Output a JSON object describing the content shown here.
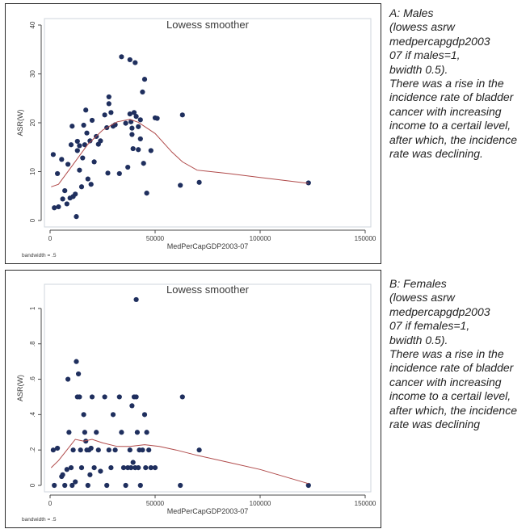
{
  "chart_data": [
    {
      "type": "scatter",
      "title": "Lowess smoother",
      "xlabel": "MedPerCapGDP2003-07",
      "ylabel": "ASR(W)",
      "note": "bandwidth = .5",
      "xlim": [
        0,
        150000
      ],
      "ylim": [
        0,
        40
      ],
      "x_ticks": [
        {
          "value": 0,
          "label": "0"
        },
        {
          "value": 50000,
          "label": "50000"
        },
        {
          "value": 100000,
          "label": "100000"
        },
        {
          "value": 150000,
          "label": "150000"
        }
      ],
      "y_ticks": [
        {
          "value": 0,
          "label": "0"
        },
        {
          "value": 10,
          "label": "10"
        },
        {
          "value": 20,
          "label": "20"
        },
        {
          "value": 30,
          "label": "30"
        },
        {
          "value": 40,
          "label": "40"
        }
      ],
      "grid": false,
      "points": [
        [
          1500,
          13.5
        ],
        [
          2000,
          2.6
        ],
        [
          3500,
          9.6
        ],
        [
          4000,
          2.8
        ],
        [
          5500,
          12.5
        ],
        [
          6000,
          4.4
        ],
        [
          7000,
          6.1
        ],
        [
          8000,
          3.4
        ],
        [
          8500,
          11.5
        ],
        [
          9500,
          4.6
        ],
        [
          10000,
          15.5
        ],
        [
          10500,
          19.3
        ],
        [
          11000,
          4.9
        ],
        [
          12000,
          5.4
        ],
        [
          12500,
          0.8
        ],
        [
          13000,
          14.3
        ],
        [
          13000,
          16.2
        ],
        [
          14000,
          15.3
        ],
        [
          14000,
          10.3
        ],
        [
          15000,
          6.9
        ],
        [
          15500,
          12.8
        ],
        [
          16000,
          19.5
        ],
        [
          16500,
          15.5
        ],
        [
          17000,
          22.6
        ],
        [
          17500,
          17.9
        ],
        [
          18000,
          8.5
        ],
        [
          19000,
          16.3
        ],
        [
          19500,
          7.4
        ],
        [
          20000,
          20.5
        ],
        [
          21000,
          12.0
        ],
        [
          22000,
          17.2
        ],
        [
          23000,
          15.6
        ],
        [
          24000,
          16.3
        ],
        [
          26000,
          21.6
        ],
        [
          27000,
          19.0
        ],
        [
          27500,
          9.7
        ],
        [
          28000,
          25.3
        ],
        [
          28000,
          23.9
        ],
        [
          29000,
          22.1
        ],
        [
          30000,
          19.3
        ],
        [
          31000,
          19.6
        ],
        [
          33000,
          9.6
        ],
        [
          34000,
          33.5
        ],
        [
          36000,
          19.9
        ],
        [
          37000,
          10.9
        ],
        [
          38000,
          32.9
        ],
        [
          38000,
          21.8
        ],
        [
          38500,
          20.2
        ],
        [
          39000,
          18.9
        ],
        [
          39000,
          17.6
        ],
        [
          39500,
          14.7
        ],
        [
          40000,
          22.1
        ],
        [
          40500,
          32.3
        ],
        [
          41000,
          21.3
        ],
        [
          42000,
          14.5
        ],
        [
          42000,
          19.2
        ],
        [
          43000,
          20.6
        ],
        [
          43000,
          16.7
        ],
        [
          44000,
          26.3
        ],
        [
          45000,
          28.9
        ],
        [
          44500,
          11.7
        ],
        [
          46000,
          5.6
        ],
        [
          48000,
          14.3
        ],
        [
          50000,
          21.0
        ],
        [
          51000,
          20.9
        ],
        [
          62000,
          7.2
        ],
        [
          63000,
          21.6
        ],
        [
          71000,
          7.8
        ],
        [
          123000,
          7.7
        ]
      ],
      "smoother": [
        [
          500,
          6.9
        ],
        [
          4000,
          7.4
        ],
        [
          10000,
          10.9
        ],
        [
          18000,
          15.6
        ],
        [
          25000,
          18.5
        ],
        [
          32000,
          20.2
        ],
        [
          38000,
          20.7
        ],
        [
          42000,
          20.1
        ],
        [
          50000,
          17.8
        ],
        [
          58000,
          14.0
        ],
        [
          63000,
          12.0
        ],
        [
          70000,
          10.3
        ],
        [
          85000,
          9.6
        ],
        [
          100000,
          8.8
        ],
        [
          123000,
          7.6
        ]
      ]
    },
    {
      "type": "scatter",
      "title": "Lowess smoother",
      "xlabel": "MedPerCapGDP2003-07",
      "ylabel": "ASR(W)",
      "note": "bandwidth = .5",
      "xlim": [
        0,
        150000
      ],
      "ylim": [
        0,
        1.1
      ],
      "x_ticks": [
        {
          "value": 0,
          "label": "0"
        },
        {
          "value": 50000,
          "label": "50000"
        },
        {
          "value": 100000,
          "label": "100000"
        },
        {
          "value": 150000,
          "label": "150000"
        }
      ],
      "y_ticks": [
        {
          "value": 0,
          "label": "0"
        },
        {
          "value": 0.2,
          "label": ".2"
        },
        {
          "value": 0.4,
          "label": ".4"
        },
        {
          "value": 0.6,
          "label": ".6"
        },
        {
          "value": 0.8,
          "label": ".8"
        },
        {
          "value": 1.0,
          "label": "1"
        }
      ],
      "grid": false,
      "points": [
        [
          1500,
          0.2
        ],
        [
          2000,
          0.0
        ],
        [
          3500,
          0.21
        ],
        [
          5500,
          0.05
        ],
        [
          6000,
          0.06
        ],
        [
          7000,
          0.0
        ],
        [
          8000,
          0.09
        ],
        [
          8500,
          0.6
        ],
        [
          9000,
          0.3
        ],
        [
          10000,
          0.1
        ],
        [
          10500,
          0.0
        ],
        [
          11000,
          0.2
        ],
        [
          12000,
          0.02
        ],
        [
          12500,
          0.7
        ],
        [
          13000,
          0.5
        ],
        [
          13500,
          0.63
        ],
        [
          14000,
          0.5
        ],
        [
          14500,
          0.2
        ],
        [
          15000,
          0.1
        ],
        [
          16000,
          0.4
        ],
        [
          16500,
          0.3
        ],
        [
          17000,
          0.25
        ],
        [
          17500,
          0.2
        ],
        [
          18000,
          0.0
        ],
        [
          18500,
          0.2
        ],
        [
          19000,
          0.06
        ],
        [
          19500,
          0.21
        ],
        [
          20000,
          0.5
        ],
        [
          21000,
          0.1
        ],
        [
          22000,
          0.3
        ],
        [
          23000,
          0.2
        ],
        [
          24000,
          0.08
        ],
        [
          26000,
          0.5
        ],
        [
          27000,
          0.0
        ],
        [
          28000,
          0.2
        ],
        [
          29000,
          0.1
        ],
        [
          30000,
          0.4
        ],
        [
          31000,
          0.2
        ],
        [
          33000,
          0.5
        ],
        [
          34000,
          0.3
        ],
        [
          35000,
          0.1
        ],
        [
          36000,
          0.0
        ],
        [
          37000,
          0.1
        ],
        [
          38000,
          0.2
        ],
        [
          38500,
          0.1
        ],
        [
          39000,
          0.45
        ],
        [
          39500,
          0.13
        ],
        [
          40000,
          0.5
        ],
        [
          40500,
          0.1
        ],
        [
          41000,
          1.05
        ],
        [
          41000,
          0.5
        ],
        [
          41500,
          0.3
        ],
        [
          42000,
          0.1
        ],
        [
          42500,
          0.2
        ],
        [
          43000,
          0.0
        ],
        [
          44000,
          0.2
        ],
        [
          45000,
          0.4
        ],
        [
          45500,
          0.1
        ],
        [
          46000,
          0.3
        ],
        [
          47000,
          0.2
        ],
        [
          48000,
          0.1
        ],
        [
          50000,
          0.1
        ],
        [
          62000,
          0.0
        ],
        [
          63000,
          0.5
        ],
        [
          71000,
          0.2
        ],
        [
          123000,
          0.0
        ]
      ],
      "smoother": [
        [
          500,
          0.1
        ],
        [
          4000,
          0.14
        ],
        [
          8000,
          0.2
        ],
        [
          12000,
          0.26
        ],
        [
          16000,
          0.25
        ],
        [
          20000,
          0.26
        ],
        [
          25000,
          0.24
        ],
        [
          32000,
          0.22
        ],
        [
          38000,
          0.22
        ],
        [
          45000,
          0.23
        ],
        [
          52000,
          0.22
        ],
        [
          60000,
          0.2
        ],
        [
          70000,
          0.17
        ],
        [
          85000,
          0.13
        ],
        [
          100000,
          0.09
        ],
        [
          123000,
          0.01
        ]
      ]
    }
  ],
  "captions": [
    {
      "label": "A: Males\n(lowess asrw\nmedpercapgdp2003\n07 if males=1,\nbwidth 0.5).",
      "text": "There was a rise in the incidence rate of bladder cancer with increasing income to a certail level, after which, the incidence rate was declining."
    },
    {
      "label": "B: Females\n(lowess asrw\nmedpercapgdp2003\n07 if females=1,\nbwidth 0.5).",
      "text": "There was a rise in the incidence rate of bladder cancer with increasing income to a certail level, after which, the incidence rate was declining"
    }
  ],
  "colors": {
    "marker": "#1f2f5e",
    "smoother": "#b04a4a",
    "plot_region_bg": "#ffffff",
    "graph_region_bg": "#ffffff",
    "axis": "#4a4a4a",
    "text": "#3a3a3a"
  }
}
